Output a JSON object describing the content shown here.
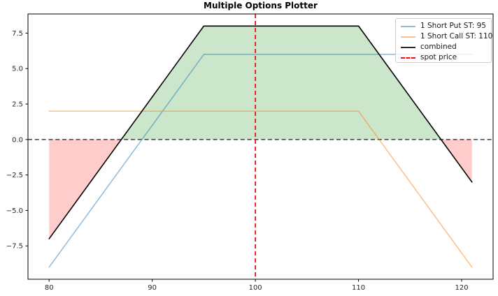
{
  "figure": {
    "background": "#ffffff"
  },
  "chart_data": {
    "type": "line",
    "title": "Multiple Options Plotter",
    "xlabel": "",
    "ylabel": "",
    "xlim": [
      77.95,
      123.05
    ],
    "ylim": [
      -9.85,
      8.85
    ],
    "grid": false,
    "x_ticks": {
      "values": [
        80,
        90,
        100,
        110,
        120
      ],
      "labels": [
        "80",
        "90",
        "100",
        "110",
        "120"
      ]
    },
    "y_ticks": {
      "values": [
        7.5,
        5.0,
        2.5,
        0.0,
        -2.5,
        -5.0,
        -7.5
      ],
      "labels": [
        "7.5",
        "5.0",
        "2.5",
        "0.0",
        "−2.5",
        "−5.0",
        "−7.5"
      ]
    },
    "series": [
      {
        "name": "1 Short Put ST: 95",
        "slug": "short-put",
        "color": "#1f77b4",
        "opacity": 0.5,
        "width": 1.5,
        "dash": null,
        "points": [
          [
            80,
            -9
          ],
          [
            95,
            6
          ],
          [
            121,
            6
          ]
        ]
      },
      {
        "name": "1 Short Call ST: 110",
        "slug": "short-call",
        "color": "#ff7f0e",
        "opacity": 0.5,
        "width": 1.5,
        "dash": null,
        "points": [
          [
            80,
            2
          ],
          [
            110,
            2
          ],
          [
            121,
            -9
          ]
        ]
      },
      {
        "name": "combined",
        "slug": "combined",
        "color": "#000000",
        "opacity": 1.0,
        "width": 1.6,
        "dash": null,
        "points": [
          [
            80,
            -7
          ],
          [
            95,
            8
          ],
          [
            110,
            8
          ],
          [
            121,
            -3
          ]
        ]
      }
    ],
    "reference_lines": [
      {
        "name": "zero-line",
        "orientation": "horizontal",
        "value": 0,
        "color": "#1a1a1a",
        "width": 1.3,
        "dash": "6 3.8"
      },
      {
        "name": "spot-price-line",
        "orientation": "vertical",
        "value": 100,
        "color": "#fb0a0a",
        "width": 1.8,
        "dash": "6 4"
      }
    ],
    "fills": [
      {
        "name": "profit-region",
        "color": "#008000",
        "opacity": 0.2,
        "points": [
          [
            87,
            0
          ],
          [
            95,
            8
          ],
          [
            110,
            8
          ],
          [
            118,
            0
          ]
        ]
      },
      {
        "name": "loss-region-left",
        "color": "#ff0000",
        "opacity": 0.2,
        "points": [
          [
            80,
            0
          ],
          [
            87,
            0
          ],
          [
            80,
            -7
          ]
        ]
      },
      {
        "name": "loss-region-right",
        "color": "#ff0000",
        "opacity": 0.2,
        "points": [
          [
            118,
            0
          ],
          [
            121,
            0
          ],
          [
            121,
            -3
          ]
        ]
      }
    ],
    "legend": {
      "position": "top-right",
      "entries": [
        {
          "label": "1 Short Put ST: 95",
          "swatch_color": "#8fbbd9",
          "swatch_style": "solid"
        },
        {
          "label": "1 Short Call ST: 110",
          "swatch_color": "#ffbf86",
          "swatch_style": "solid"
        },
        {
          "label": "combined",
          "swatch_color": "#2b2b2b",
          "swatch_style": "solid"
        },
        {
          "label": "spot price",
          "swatch_color": "#fb0a0a",
          "swatch_style": "dashed"
        }
      ]
    }
  }
}
